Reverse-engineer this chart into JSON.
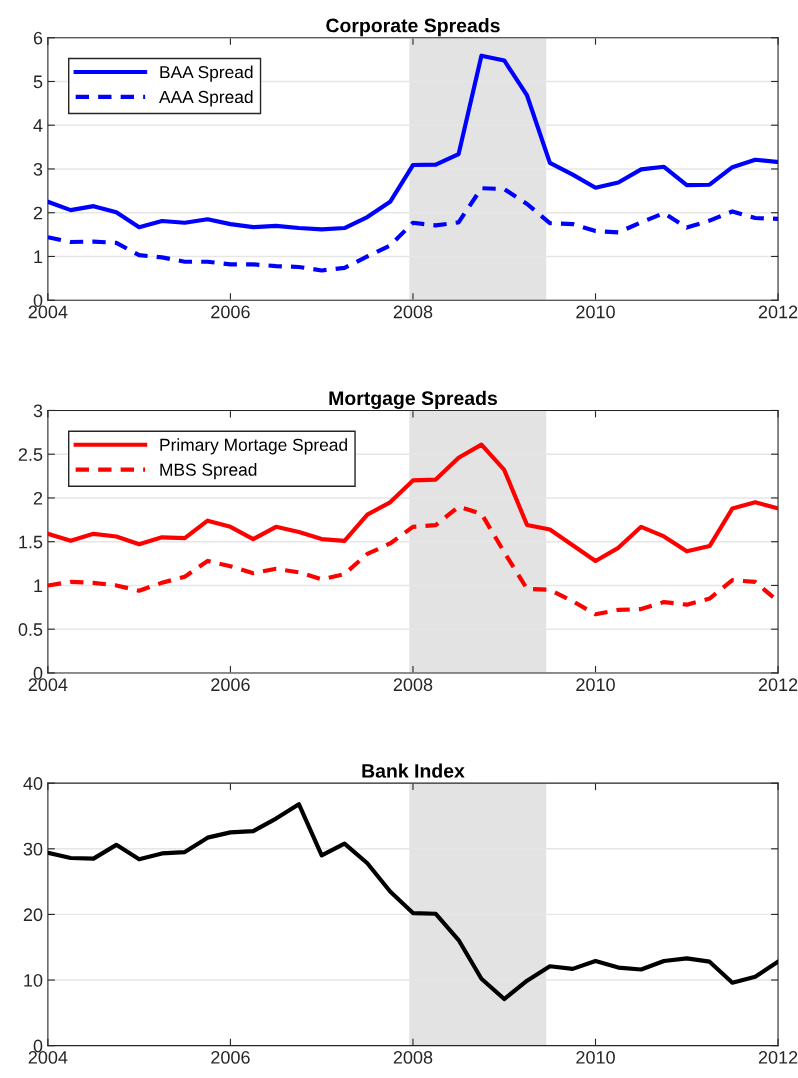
{
  "chart_data": [
    {
      "type": "line",
      "title": "Corporate Spreads",
      "x": [
        2004,
        2004.25,
        2004.5,
        2004.75,
        2005,
        2005.25,
        2005.5,
        2005.75,
        2006,
        2006.25,
        2006.5,
        2006.75,
        2007,
        2007.25,
        2007.5,
        2007.75,
        2008,
        2008.25,
        2008.5,
        2008.75,
        2009,
        2009.25,
        2009.5,
        2009.75,
        2010,
        2010.25,
        2010.5,
        2010.75,
        2011,
        2011.25,
        2011.5,
        2011.75,
        2012
      ],
      "series": [
        {
          "name": "BAA Spread",
          "color": "#0000ff",
          "line_style": "solid",
          "values": [
            2.25,
            2.06,
            2.15,
            2.01,
            1.67,
            1.81,
            1.77,
            1.85,
            1.74,
            1.67,
            1.7,
            1.65,
            1.62,
            1.65,
            1.9,
            2.25,
            3.09,
            3.1,
            3.34,
            5.59,
            5.48,
            4.68,
            3.14,
            2.87,
            2.57,
            2.69,
            2.99,
            3.05,
            2.63,
            2.64,
            3.04,
            3.21,
            3.16
          ]
        },
        {
          "name": "AAA Spread",
          "color": "#0000ff",
          "line_style": "dashed",
          "values": [
            1.44,
            1.33,
            1.34,
            1.31,
            1.03,
            0.98,
            0.88,
            0.88,
            0.82,
            0.82,
            0.78,
            0.76,
            0.68,
            0.74,
            1.0,
            1.25,
            1.77,
            1.71,
            1.78,
            2.56,
            2.54,
            2.2,
            1.76,
            1.74,
            1.58,
            1.55,
            1.78,
            1.99,
            1.66,
            1.82,
            2.03,
            1.88,
            1.86
          ]
        }
      ],
      "xlim": [
        2004,
        2012
      ],
      "xticks": [
        2004,
        2006,
        2008,
        2010,
        2012
      ],
      "ylim": [
        0,
        6
      ],
      "yticks": [
        0,
        1,
        2,
        3,
        4,
        5,
        6
      ],
      "bands": [
        {
          "axis": "x",
          "from": 2007.96,
          "to": 2009.46,
          "color": "#e3e3e3"
        }
      ],
      "grid": "y",
      "legend": "top left"
    },
    {
      "type": "line",
      "title": "Mortgage Spreads",
      "x": [
        2004,
        2004.25,
        2004.5,
        2004.75,
        2005,
        2005.25,
        2005.5,
        2005.75,
        2006,
        2006.25,
        2006.5,
        2006.75,
        2007,
        2007.25,
        2007.5,
        2007.75,
        2008,
        2008.25,
        2008.5,
        2008.75,
        2009,
        2009.25,
        2009.5,
        2009.75,
        2010,
        2010.25,
        2010.5,
        2010.75,
        2011,
        2011.25,
        2011.5,
        2011.75,
        2012
      ],
      "series": [
        {
          "name": "Primary Mortage Spread",
          "color": "#ff0000",
          "line_style": "solid",
          "values": [
            1.59,
            1.51,
            1.59,
            1.56,
            1.47,
            1.55,
            1.54,
            1.74,
            1.67,
            1.53,
            1.67,
            1.61,
            1.53,
            1.51,
            1.81,
            1.95,
            2.2,
            2.21,
            2.46,
            2.61,
            2.32,
            1.69,
            1.64,
            1.46,
            1.28,
            1.43,
            1.67,
            1.56,
            1.39,
            1.45,
            1.88,
            1.95,
            1.88
          ]
        },
        {
          "name": "MBS Spread",
          "color": "#ff0000",
          "line_style": "dashed",
          "values": [
            1.0,
            1.04,
            1.03,
            1.0,
            0.94,
            1.03,
            1.1,
            1.28,
            1.22,
            1.14,
            1.19,
            1.15,
            1.07,
            1.13,
            1.36,
            1.48,
            1.67,
            1.69,
            1.9,
            1.82,
            1.38,
            0.96,
            0.95,
            0.82,
            0.67,
            0.72,
            0.73,
            0.81,
            0.78,
            0.85,
            1.06,
            1.04,
            0.82
          ]
        }
      ],
      "xlim": [
        2004,
        2012
      ],
      "xticks": [
        2004,
        2006,
        2008,
        2010,
        2012
      ],
      "ylim": [
        0,
        3
      ],
      "yticks": [
        0,
        0.5,
        1,
        1.5,
        2,
        2.5,
        3
      ],
      "bands": [
        {
          "axis": "x",
          "from": 2007.96,
          "to": 2009.46,
          "color": "#e3e3e3"
        }
      ],
      "grid": "y",
      "legend": "top left"
    },
    {
      "type": "line",
      "title": "Bank Index",
      "x": [
        2004,
        2004.25,
        2004.5,
        2004.75,
        2005,
        2005.25,
        2005.5,
        2005.75,
        2006,
        2006.25,
        2006.5,
        2006.75,
        2007,
        2007.25,
        2007.5,
        2007.75,
        2008,
        2008.25,
        2008.5,
        2008.75,
        2009,
        2009.25,
        2009.5,
        2009.75,
        2010,
        2010.25,
        2010.5,
        2010.75,
        2011,
        2011.25,
        2011.5,
        2011.75,
        2012
      ],
      "series": [
        {
          "color": "#000000",
          "line_style": "solid",
          "values": [
            29.4,
            28.6,
            28.5,
            30.6,
            28.4,
            29.3,
            29.5,
            31.7,
            32.5,
            32.7,
            34.6,
            36.8,
            29.0,
            30.8,
            27.8,
            23.5,
            20.2,
            20.1,
            16.1,
            10.2,
            7.1,
            9.9,
            12.1,
            11.7,
            12.9,
            11.9,
            11.6,
            12.9,
            13.3,
            12.8,
            9.6,
            10.5,
            12.8
          ]
        }
      ],
      "xlim": [
        2004,
        2012
      ],
      "xticks": [
        2004,
        2006,
        2008,
        2010,
        2012
      ],
      "ylim": [
        0,
        40
      ],
      "yticks": [
        0,
        10,
        20,
        30,
        40
      ],
      "bands": [
        {
          "axis": "x",
          "from": 2007.96,
          "to": 2009.46,
          "color": "#e3e3e3"
        }
      ],
      "grid": "y"
    }
  ]
}
